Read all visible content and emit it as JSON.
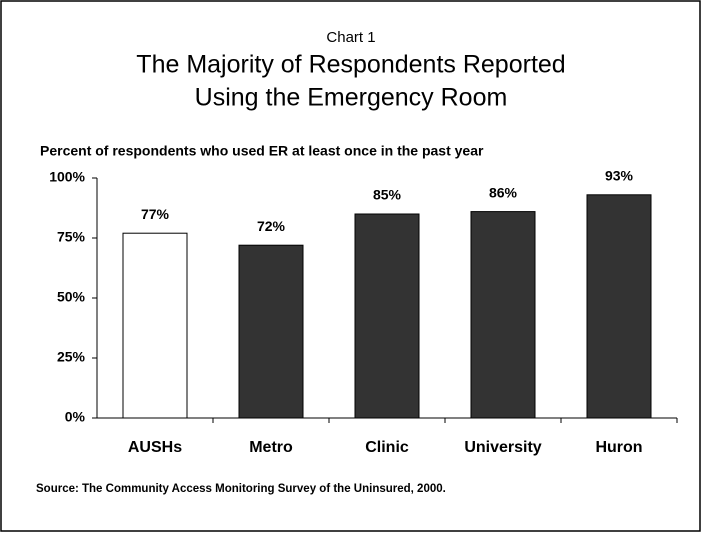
{
  "chart_data": {
    "type": "bar",
    "supertitle": "Chart 1",
    "title": [
      "The Majority of Respondents Reported",
      "Using the Emergency Room"
    ],
    "subtitle": "Percent of respondents who used ER at least once in the past year",
    "categories": [
      "AUSHs",
      "Metro",
      "Clinic",
      "University",
      "Huron"
    ],
    "values": [
      77,
      72,
      85,
      86,
      93
    ],
    "value_labels": [
      "77%",
      "72%",
      "85%",
      "86%",
      "93%"
    ],
    "colors": [
      "#ffffff",
      "#333333",
      "#333333",
      "#333333",
      "#333333"
    ],
    "ylim": [
      0,
      100
    ],
    "yticks": [
      {
        "value": 0,
        "label": "0%"
      },
      {
        "value": 25,
        "label": "25%"
      },
      {
        "value": 50,
        "label": "50%"
      },
      {
        "value": 75,
        "label": "75%"
      },
      {
        "value": 100,
        "label": "100%"
      }
    ],
    "grid": false,
    "source": "Source: The Community Access Monitoring Survey of the Uninsured, 2000."
  }
}
